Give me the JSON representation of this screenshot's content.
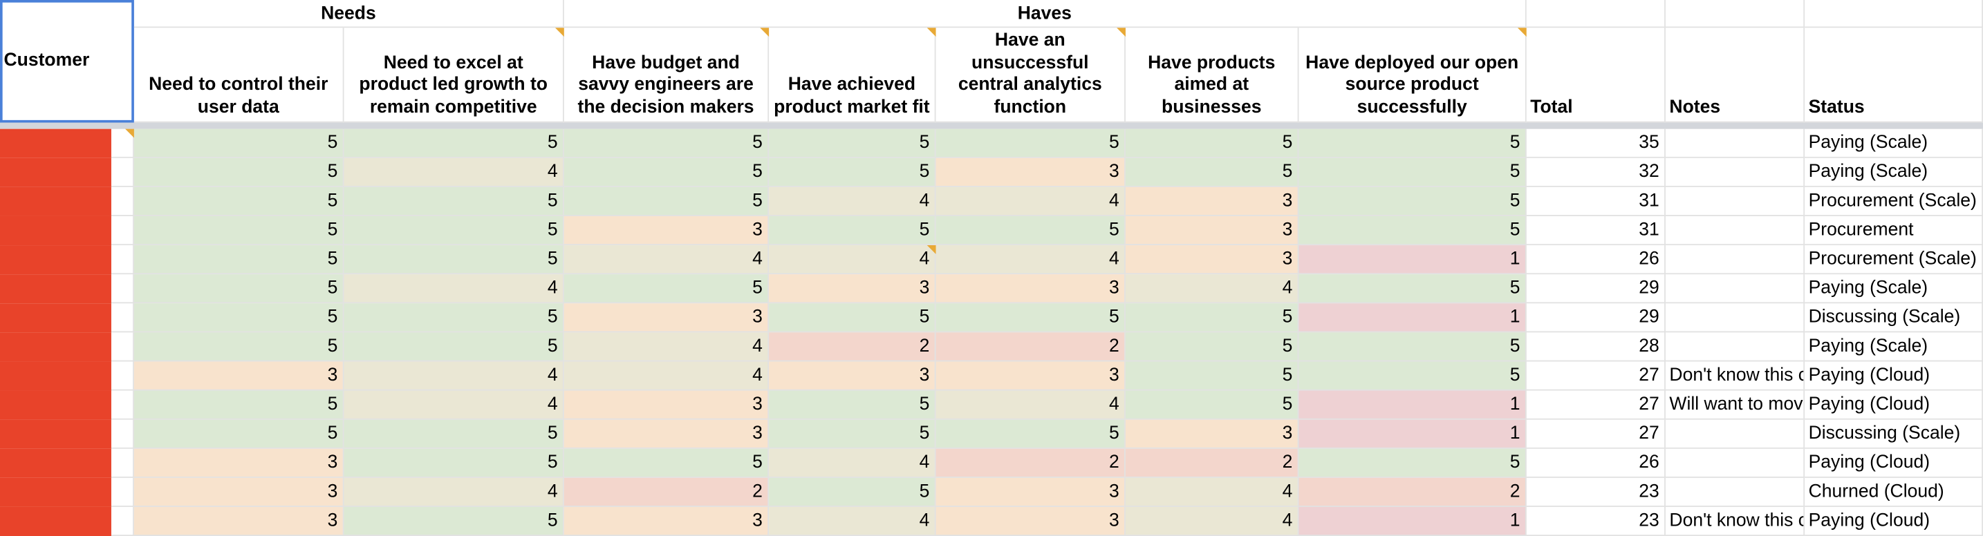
{
  "header": {
    "customer": "Customer",
    "groups": [
      "Needs",
      "Haves"
    ],
    "columns": [
      "Need to control their user data",
      "Need to excel at product led growth to remain competitive",
      "Have budget and savvy engineers are the decision makers",
      "Have achieved product market fit",
      "Have an unsuccessful central analytics function",
      "Have products aimed at businesses",
      "Have deployed our open source product successfully",
      "Total",
      "Notes",
      "Status"
    ]
  },
  "score_colors": {
    "5": "#dce9d4",
    "4": "#eae7d4",
    "3": "#f8e3cd",
    "2": "#f3d6cc",
    "1": "#eed1d3"
  },
  "rows": [
    {
      "scores": [
        5,
        5,
        5,
        5,
        5,
        5,
        5
      ],
      "total": 35,
      "notes": null,
      "status": "Paying (Scale)"
    },
    {
      "scores": [
        5,
        4,
        5,
        5,
        3,
        5,
        5
      ],
      "total": 32,
      "notes": null,
      "status": "Paying (Scale)"
    },
    {
      "scores": [
        5,
        5,
        5,
        4,
        4,
        3,
        5
      ],
      "total": 31,
      "notes": null,
      "status": "Procurement (Scale)"
    },
    {
      "scores": [
        5,
        5,
        3,
        5,
        5,
        3,
        5
      ],
      "total": 31,
      "notes": null,
      "status": "Procurement"
    },
    {
      "scores": [
        5,
        5,
        4,
        4,
        4,
        3,
        1
      ],
      "total": 26,
      "notes": null,
      "status": "Procurement (Scale)"
    },
    {
      "scores": [
        5,
        4,
        5,
        3,
        3,
        4,
        5
      ],
      "total": 29,
      "notes": null,
      "status": "Paying (Scale)"
    },
    {
      "scores": [
        5,
        5,
        3,
        5,
        5,
        5,
        1
      ],
      "total": 29,
      "notes": null,
      "status": "Discussing (Scale)"
    },
    {
      "scores": [
        5,
        5,
        4,
        2,
        2,
        5,
        5
      ],
      "total": 28,
      "notes": null,
      "status": "Paying (Scale)"
    },
    {
      "scores": [
        3,
        4,
        4,
        3,
        3,
        5,
        5
      ],
      "total": 27,
      "notes": "Don't know this c",
      "status": "Paying (Cloud)"
    },
    {
      "scores": [
        5,
        4,
        3,
        5,
        4,
        5,
        1
      ],
      "total": 27,
      "notes": "Will want to mov",
      "status": "Paying (Cloud)"
    },
    {
      "scores": [
        5,
        5,
        3,
        5,
        5,
        3,
        1
      ],
      "total": 27,
      "notes": null,
      "status": "Discussing (Scale)"
    },
    {
      "scores": [
        3,
        5,
        5,
        4,
        2,
        2,
        5
      ],
      "total": 26,
      "notes": null,
      "status": "Paying (Cloud)"
    },
    {
      "scores": [
        3,
        4,
        2,
        5,
        3,
        4,
        2
      ],
      "total": 23,
      "notes": null,
      "status": "Churned (Cloud)"
    },
    {
      "scores": [
        3,
        5,
        3,
        4,
        3,
        4,
        1
      ],
      "total": 23,
      "notes": "Don't know this c",
      "status": "Paying (Cloud)"
    }
  ]
}
